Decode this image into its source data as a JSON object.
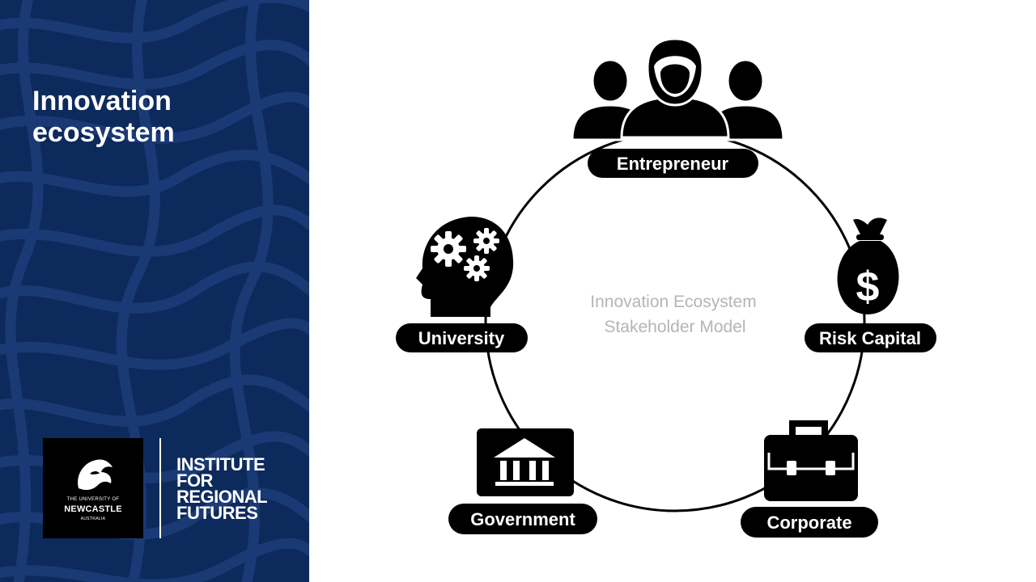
{
  "slide": {
    "title_line1": "Innovation",
    "title_line2": "ecosystem"
  },
  "logo": {
    "university_line1": "THE UNIVERSITY OF",
    "university_line2": "NEWCASTLE",
    "university_line3": "AUSTRALIA",
    "institute_lines": [
      "INSTITUTE",
      "FOR",
      "REGIONAL",
      "FUTURES"
    ]
  },
  "diagram": {
    "center_line1": "Innovation  Ecosystem",
    "center_line2": "Stakeholder Model",
    "nodes": [
      {
        "label": "Entrepreneur",
        "icon": "people-group-icon"
      },
      {
        "label": "Risk Capital",
        "icon": "money-bag-icon"
      },
      {
        "label": "Corporate",
        "icon": "briefcase-icon"
      },
      {
        "label": "Government",
        "icon": "government-building-icon"
      },
      {
        "label": "University",
        "icon": "head-gears-icon"
      }
    ],
    "currency_symbol": "$"
  },
  "colors": {
    "panel_navy": "#0d2a5c",
    "pattern_stroke": "#1a3a75",
    "pill_black": "#000000",
    "center_text_gray": "#b5b5b5"
  }
}
